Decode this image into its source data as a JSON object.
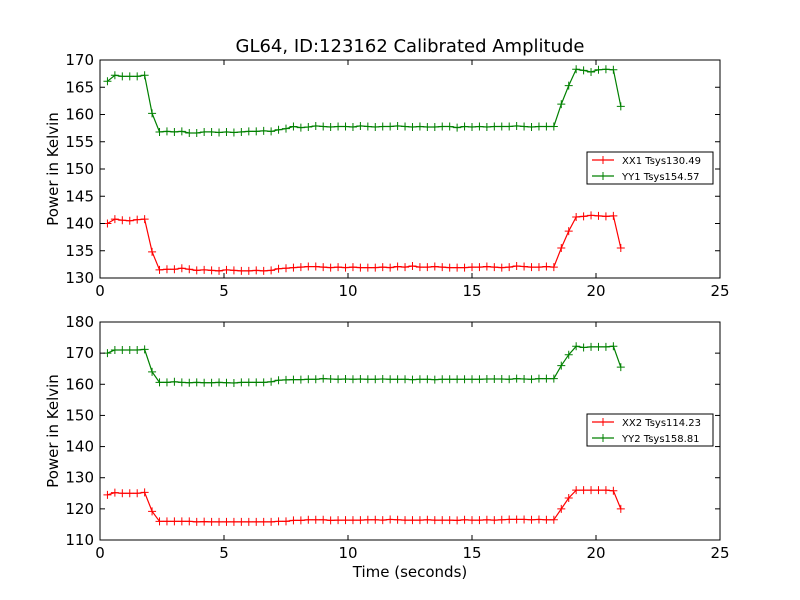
{
  "figure": {
    "title": "GL64, ID:123162 Calibrated Amplitude"
  },
  "chart_data": [
    {
      "type": "line",
      "title": "GL64, ID:123162 Calibrated Amplitude",
      "xlabel": "",
      "ylabel": "Power in Kelvin",
      "xlim": [
        0,
        25
      ],
      "ylim": [
        130,
        170
      ],
      "xticks": [
        0,
        5,
        10,
        15,
        20,
        25
      ],
      "yticks": [
        130,
        135,
        140,
        145,
        150,
        155,
        160,
        165,
        170
      ],
      "grid": false,
      "legend_position": "right",
      "x": [
        0.3,
        0.6,
        0.9,
        1.2,
        1.5,
        1.8,
        2.1,
        2.4,
        2.7,
        3.0,
        3.3,
        3.6,
        3.9,
        4.2,
        4.5,
        4.8,
        5.1,
        5.4,
        5.7,
        6.0,
        6.3,
        6.6,
        6.9,
        7.2,
        7.5,
        7.8,
        8.1,
        8.4,
        8.7,
        9.0,
        9.3,
        9.6,
        9.9,
        10.2,
        10.5,
        10.8,
        11.1,
        11.4,
        11.7,
        12.0,
        12.3,
        12.6,
        12.9,
        13.2,
        13.5,
        13.8,
        14.1,
        14.4,
        14.7,
        15.0,
        15.3,
        15.6,
        15.9,
        16.2,
        16.5,
        16.8,
        17.1,
        17.4,
        17.7,
        18.0,
        18.3,
        18.6,
        18.9,
        19.2,
        19.5,
        19.8,
        20.1,
        20.4,
        20.7,
        21.0
      ],
      "series": [
        {
          "name": "XX1 Tsys130.49",
          "color": "#ff0000",
          "values": [
            140.0,
            140.8,
            140.6,
            140.5,
            140.7,
            140.8,
            134.8,
            131.5,
            131.6,
            131.6,
            131.8,
            131.6,
            131.4,
            131.5,
            131.4,
            131.3,
            131.5,
            131.4,
            131.3,
            131.3,
            131.4,
            131.3,
            131.4,
            131.7,
            131.8,
            131.9,
            132.0,
            132.1,
            132.1,
            132.0,
            131.9,
            132.0,
            131.9,
            132.0,
            131.9,
            131.9,
            131.9,
            132.0,
            131.9,
            132.1,
            132.0,
            132.2,
            132.0,
            132.0,
            132.1,
            132.0,
            131.9,
            131.9,
            131.9,
            132.0,
            132.0,
            132.1,
            132.0,
            131.9,
            132.0,
            132.2,
            132.1,
            132.0,
            132.0,
            132.1,
            132.0,
            135.5,
            138.6,
            141.2,
            141.3,
            141.5,
            141.4,
            141.3,
            141.4,
            135.5
          ]
        },
        {
          "name": "YY1 Tsys154.57",
          "color": "#008000",
          "values": [
            166.1,
            167.2,
            167.0,
            167.0,
            167.0,
            167.2,
            160.2,
            156.8,
            156.9,
            156.8,
            156.9,
            156.6,
            156.6,
            156.8,
            156.8,
            156.7,
            156.8,
            156.7,
            156.8,
            156.9,
            156.9,
            157.0,
            156.9,
            157.2,
            157.4,
            157.8,
            157.6,
            157.7,
            157.9,
            157.8,
            157.7,
            157.8,
            157.8,
            157.7,
            157.9,
            157.8,
            157.7,
            157.8,
            157.8,
            157.9,
            157.8,
            157.7,
            157.8,
            157.7,
            157.7,
            157.8,
            157.8,
            157.6,
            157.8,
            157.7,
            157.8,
            157.7,
            157.8,
            157.8,
            157.8,
            157.9,
            157.8,
            157.7,
            157.8,
            157.8,
            157.8,
            161.9,
            165.3,
            168.3,
            168.1,
            167.8,
            168.2,
            168.3,
            168.2,
            161.5
          ]
        }
      ]
    },
    {
      "type": "line",
      "title": "",
      "xlabel": "Time (seconds)",
      "ylabel": "Power in Kelvin",
      "xlim": [
        0,
        25
      ],
      "ylim": [
        110,
        180
      ],
      "xticks": [
        0,
        5,
        10,
        15,
        20,
        25
      ],
      "yticks": [
        110,
        120,
        130,
        140,
        150,
        160,
        170,
        180
      ],
      "grid": false,
      "legend_position": "right",
      "x": [
        0.3,
        0.6,
        0.9,
        1.2,
        1.5,
        1.8,
        2.1,
        2.4,
        2.7,
        3.0,
        3.3,
        3.6,
        3.9,
        4.2,
        4.5,
        4.8,
        5.1,
        5.4,
        5.7,
        6.0,
        6.3,
        6.6,
        6.9,
        7.2,
        7.5,
        7.8,
        8.1,
        8.4,
        8.7,
        9.0,
        9.3,
        9.6,
        9.9,
        10.2,
        10.5,
        10.8,
        11.1,
        11.4,
        11.7,
        12.0,
        12.3,
        12.6,
        12.9,
        13.2,
        13.5,
        13.8,
        14.1,
        14.4,
        14.7,
        15.0,
        15.3,
        15.6,
        15.9,
        16.2,
        16.5,
        16.8,
        17.1,
        17.4,
        17.7,
        18.0,
        18.3,
        18.6,
        18.9,
        19.2,
        19.5,
        19.8,
        20.1,
        20.4,
        20.7,
        21.0
      ],
      "series": [
        {
          "name": "XX2 Tsys114.23",
          "color": "#ff0000",
          "values": [
            124.5,
            125.2,
            125.0,
            125.0,
            125.0,
            125.3,
            119.2,
            116.0,
            116.0,
            116.0,
            116.0,
            116.0,
            115.8,
            115.9,
            115.8,
            115.8,
            115.8,
            115.8,
            115.8,
            115.8,
            115.8,
            115.8,
            115.8,
            116.0,
            116.0,
            116.3,
            116.3,
            116.5,
            116.5,
            116.5,
            116.3,
            116.4,
            116.4,
            116.4,
            116.4,
            116.5,
            116.5,
            116.4,
            116.6,
            116.5,
            116.4,
            116.4,
            116.4,
            116.5,
            116.4,
            116.4,
            116.4,
            116.3,
            116.5,
            116.4,
            116.4,
            116.5,
            116.4,
            116.5,
            116.6,
            116.6,
            116.6,
            116.5,
            116.6,
            116.5,
            116.5,
            120.0,
            123.5,
            126.0,
            126.0,
            126.0,
            126.0,
            126.0,
            125.8,
            120.0
          ]
        },
        {
          "name": "YY2 Tsys158.81",
          "color": "#008000",
          "values": [
            170.0,
            171.0,
            171.0,
            171.0,
            171.0,
            171.2,
            164.0,
            160.6,
            160.6,
            160.8,
            160.6,
            160.5,
            160.6,
            160.5,
            160.5,
            160.6,
            160.5,
            160.4,
            160.6,
            160.6,
            160.6,
            160.6,
            160.8,
            161.3,
            161.4,
            161.5,
            161.5,
            161.6,
            161.6,
            161.8,
            161.7,
            161.6,
            161.7,
            161.6,
            161.7,
            161.6,
            161.6,
            161.7,
            161.6,
            161.6,
            161.6,
            161.5,
            161.6,
            161.6,
            161.5,
            161.6,
            161.6,
            161.6,
            161.6,
            161.6,
            161.6,
            161.7,
            161.7,
            161.7,
            161.6,
            161.8,
            161.7,
            161.6,
            161.8,
            161.8,
            161.8,
            166.0,
            169.5,
            172.2,
            171.8,
            172.0,
            172.0,
            172.0,
            172.2,
            165.5
          ]
        }
      ]
    }
  ]
}
